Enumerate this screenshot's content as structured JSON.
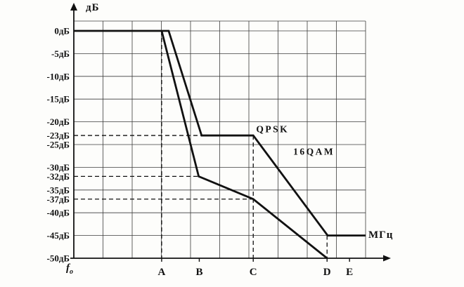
{
  "chart_data": {
    "type": "line",
    "ylabel": "дБ",
    "xlabel": "МГц",
    "origin_label": {
      "main": "f",
      "sub": "o"
    },
    "ylim": [
      -50,
      0
    ],
    "grid": true,
    "line_color": "#111111",
    "grid_color": "#3c3c3c",
    "y_ticks": [
      {
        "label": "0дБ",
        "value": 0
      },
      {
        "label": "-5дБ",
        "value": -5
      },
      {
        "label": "-10дБ",
        "value": -10
      },
      {
        "label": "-15дБ",
        "value": -15
      },
      {
        "label": "-20дБ",
        "value": -20
      },
      {
        "label": "-23дБ",
        "value": -23
      },
      {
        "label": "-25дБ",
        "value": -25
      },
      {
        "label": "-30дБ",
        "value": -30
      },
      {
        "label": "-32дБ",
        "value": -32
      },
      {
        "label": "-35дБ",
        "value": -35
      },
      {
        "label": "-37дБ",
        "value": -37
      },
      {
        "label": "-40дБ",
        "value": -40
      },
      {
        "label": "-45дБ",
        "value": -45
      },
      {
        "label": "-50дБ",
        "value": -50
      }
    ],
    "x_ticks": [
      {
        "label": "A",
        "pos": 0.301
      },
      {
        "label": "B",
        "pos": 0.43
      },
      {
        "label": "C",
        "pos": 0.615
      },
      {
        "label": "D",
        "pos": 0.868
      },
      {
        "label": "E",
        "pos": 0.945
      }
    ],
    "series": [
      {
        "name": "QPSK",
        "label_pos": {
          "x": 0.625,
          "y": -22.3
        },
        "points": [
          [
            0,
            0
          ],
          [
            0.325,
            0
          ],
          [
            0.438,
            -23
          ],
          [
            0.615,
            -23
          ],
          [
            0.87,
            -45
          ],
          [
            1.0,
            -45
          ]
        ]
      },
      {
        "name": "16QAM",
        "label_pos": {
          "x": 0.752,
          "y": -27.2
        },
        "points": [
          [
            0.301,
            0
          ],
          [
            0.428,
            -32
          ],
          [
            0.615,
            -37
          ],
          [
            0.868,
            -50
          ]
        ]
      }
    ],
    "guides": {
      "vertical": [
        {
          "x": 0.301,
          "from": 0,
          "to": -50
        },
        {
          "x": 0.615,
          "from": -23,
          "to": -50
        },
        {
          "x": 0.868,
          "from": -45,
          "to": -50
        }
      ],
      "horizontal": [
        {
          "y": -23,
          "from": 0,
          "to": 0.438
        },
        {
          "y": -32,
          "from": 0,
          "to": 0.428
        },
        {
          "y": -37,
          "from": 0,
          "to": 0.615
        }
      ]
    }
  }
}
